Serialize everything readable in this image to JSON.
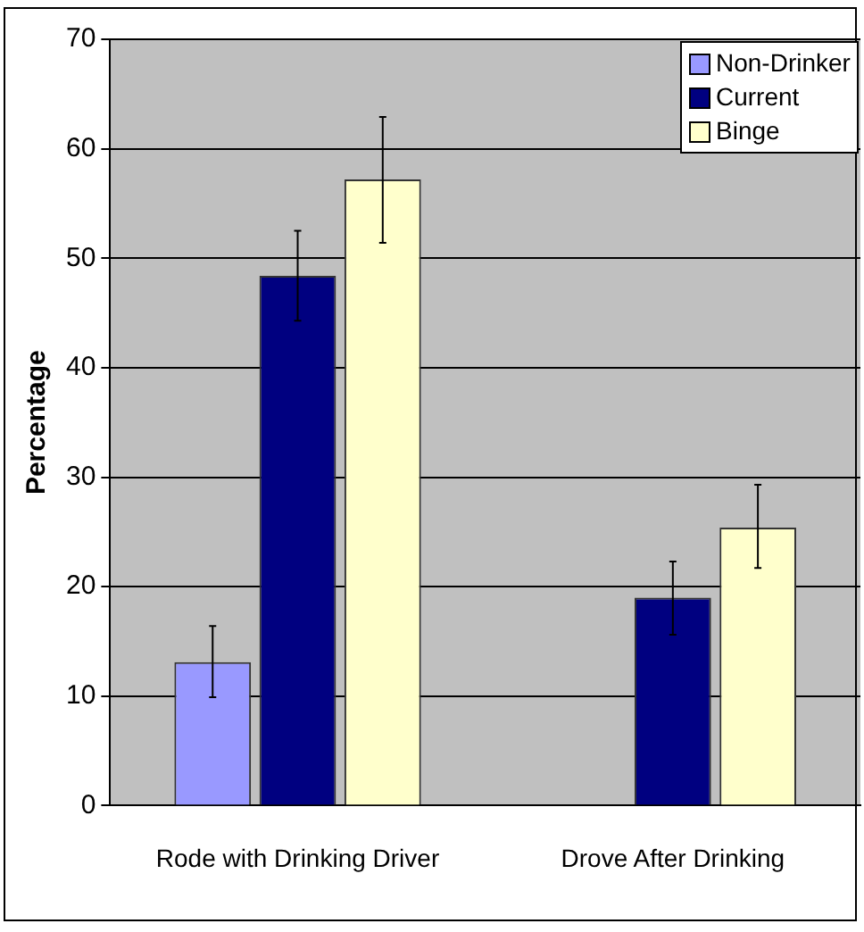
{
  "chart_data": {
    "type": "bar",
    "ylabel": "Percentage",
    "categories": [
      "Rode with Drinking Driver",
      "Drove After Drinking"
    ],
    "series": [
      {
        "name": "Non-Drinker",
        "color": "#9999ff",
        "values": [
          13.1,
          0
        ],
        "errors": [
          [
            9.9,
            16.4
          ],
          null
        ]
      },
      {
        "name": "Current",
        "color": "#000080",
        "values": [
          48.4,
          19.0
        ],
        "errors": [
          [
            44.3,
            52.5
          ],
          [
            15.6,
            22.3
          ]
        ]
      },
      {
        "name": "Binge",
        "color": "#ffffcc",
        "values": [
          57.2,
          25.4
        ],
        "errors": [
          [
            51.4,
            62.9
          ],
          [
            21.7,
            29.3
          ]
        ]
      }
    ],
    "ylim": [
      0,
      70
    ],
    "yticks": [
      0,
      10,
      20,
      30,
      40,
      50,
      60,
      70
    ],
    "grid": "y",
    "legend": "top right"
  }
}
